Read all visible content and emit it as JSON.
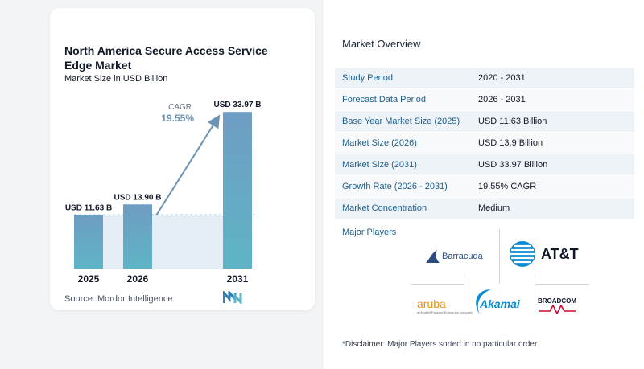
{
  "chart_data": {
    "type": "bar",
    "title": "North America Secure Access Service Edge Market",
    "subtitle": "Market Size in USD Billion",
    "categories": [
      "2025",
      "2026",
      "2031"
    ],
    "values": [
      11.63,
      13.9,
      33.97
    ],
    "data_labels": [
      "USD 11.63 B",
      "USD 13.90 B",
      "USD 33.97 B"
    ],
    "cagr_label": "CAGR",
    "cagr_value": "19.55%",
    "ylim": [
      0,
      34
    ],
    "colors": {
      "bar_top": "#6f9dc3",
      "bar_bottom": "#5eb4c6",
      "band": "#e4ecf4",
      "arrow": "#6b93b3"
    }
  },
  "source": "Source:  Mordor Intelligence",
  "overview": {
    "title": "Market Overview",
    "rows": [
      {
        "label": "Study Period",
        "value": "2020 - 2031"
      },
      {
        "label": "Forecast Data Period",
        "value": "2026 - 2031"
      },
      {
        "label": "Base Year Market Size (2025)",
        "value": "USD 11.63 Billion"
      },
      {
        "label": "Market Size (2026)",
        "value": "USD 13.9 Billion"
      },
      {
        "label": "Market Size (2031)",
        "value": "USD 33.97 Billion"
      },
      {
        "label": "Growth Rate (2026 - 2031)",
        "value": "19.55% CAGR"
      },
      {
        "label": "Market Concentration",
        "value": "Medium"
      }
    ]
  },
  "players": {
    "title": "Major Players",
    "logos": {
      "barracuda": "Barracuda",
      "att": "AT&T",
      "aruba": "aruba",
      "aruba_sub": "a Hewlett Packard Enterprise company",
      "akamai": "Akamai",
      "broadcom": "BROADCOM"
    }
  },
  "disclaimer": "*Disclaimer: Major Players sorted in no particular order"
}
